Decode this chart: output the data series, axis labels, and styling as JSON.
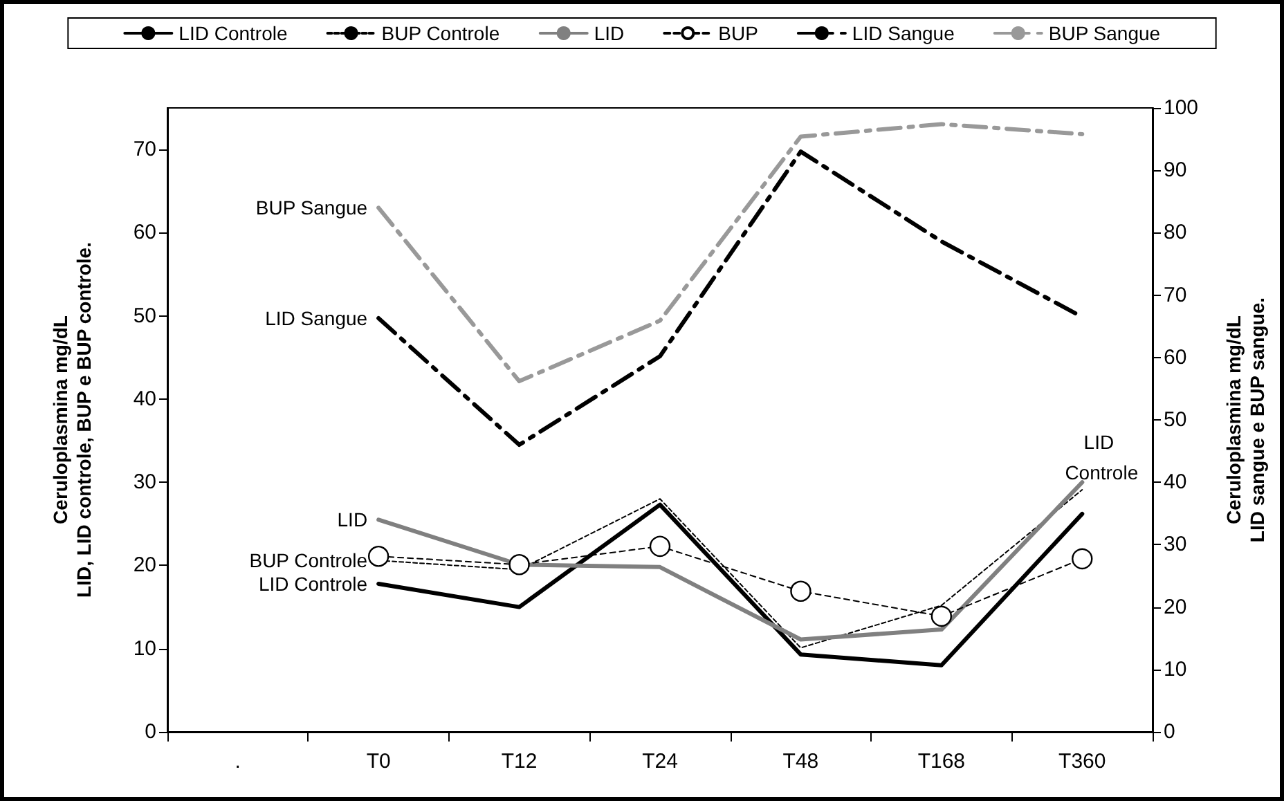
{
  "chart_data": {
    "type": "line",
    "categories": [
      ".",
      "T0",
      "T12",
      "T24",
      "T48",
      "T168",
      "T360"
    ],
    "ylabel": "Ceruloplasmina mg/dL\nLID, LID controle, BUP e BUP controle.",
    "y2label": "Ceruloplasmina mg/dL\nLID sangue e BUP sangue.",
    "ylim": [
      0,
      75
    ],
    "yticks": [
      0,
      10,
      20,
      30,
      40,
      50,
      60,
      70
    ],
    "y2lim": [
      0,
      100
    ],
    "y2ticks": [
      0,
      10,
      20,
      30,
      40,
      50,
      60,
      70,
      80,
      90,
      100
    ],
    "legend": "top",
    "grid": false,
    "series": [
      {
        "name": "LID Controle",
        "color": "#000000",
        "line_style": "solid",
        "marker": "none",
        "values": [
          null,
          17.8,
          15.0,
          27.3,
          9.3,
          8.0,
          26.2
        ]
      },
      {
        "name": "BUP Controle",
        "color": "#000000",
        "line_style": "dotted",
        "marker": "none",
        "values": [
          null,
          20.6,
          19.5,
          28.0,
          10.1,
          15.2,
          29.1
        ]
      },
      {
        "name": "LID",
        "color": "#808080",
        "line_style": "solid",
        "marker": "none",
        "values": [
          null,
          25.5,
          20.1,
          19.8,
          11.1,
          12.3,
          30.0
        ]
      },
      {
        "name": "BUP",
        "color": "#000000",
        "line_style": "dashed",
        "marker": "circle",
        "values": [
          null,
          21.1,
          20.1,
          22.3,
          16.9,
          13.9,
          20.8
        ]
      },
      {
        "name": "LID Sangue",
        "color": "#000000",
        "line_style": "dashed",
        "marker": "none",
        "axis": "y2",
        "values": [
          null,
          66.3,
          46.0,
          60.2,
          93.0,
          78.6,
          66.5
        ]
      },
      {
        "name": "BUP Sangue",
        "color": "#999999",
        "line_style": "dashed",
        "marker": "none",
        "axis": "y2",
        "values": [
          null,
          84.0,
          56.2,
          65.9,
          95.4,
          97.4,
          95.8
        ]
      }
    ],
    "annotations": [
      "LID Controle"
    ]
  }
}
